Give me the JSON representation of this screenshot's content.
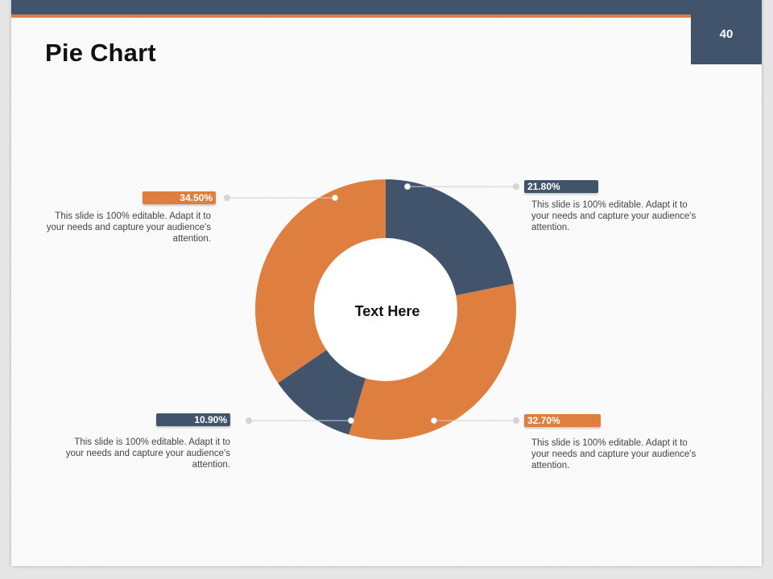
{
  "slide": {
    "title": "Pie Chart",
    "page_number": "40"
  },
  "colors": {
    "navy": "#42546b",
    "orange": "#df7f3f",
    "connector": "#cccccc"
  },
  "chart_data": {
    "type": "pie",
    "variant": "donut",
    "title": "Pie Chart",
    "center_label": "Text Here",
    "slices": [
      {
        "label": "21.80%",
        "value": 21.8,
        "color": "#42546b",
        "description": "This slide is 100% editable. Adapt it to your needs and capture your audience's attention."
      },
      {
        "label": "32.70%",
        "value": 32.7,
        "color": "#df7f3f",
        "description": "This slide is 100% editable. Adapt it to your needs and capture your audience's attention."
      },
      {
        "label": "10.90%",
        "value": 10.9,
        "color": "#42546b",
        "description": "This slide is 100% editable. Adapt it to your needs and capture your audience's attention."
      },
      {
        "label": "34.50%",
        "value": 34.5,
        "color": "#df7f3f",
        "description": "This slide is 100% editable. Adapt it to your needs and capture your audience's attention."
      }
    ]
  }
}
